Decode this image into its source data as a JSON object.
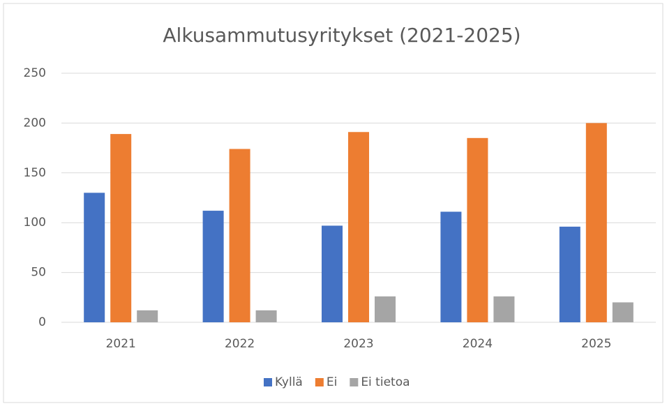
{
  "chart_data": {
    "type": "bar",
    "title": "Alkusammutusyritykset (2021-2025)",
    "categories": [
      "2021",
      "2022",
      "2023",
      "2024",
      "2025"
    ],
    "series": [
      {
        "name": "Kyllä",
        "color": "#4472c4",
        "values": [
          130,
          112,
          97,
          111,
          96
        ]
      },
      {
        "name": "Ei",
        "color": "#ed7d31",
        "values": [
          189,
          174,
          191,
          185,
          200
        ]
      },
      {
        "name": "Ei tietoa",
        "color": "#a5a5a5",
        "values": [
          12,
          12,
          26,
          26,
          20
        ]
      }
    ],
    "ylim": [
      0,
      250
    ],
    "yticks": [
      0,
      50,
      100,
      150,
      200,
      250
    ],
    "grid": true,
    "legend": "bottom"
  }
}
